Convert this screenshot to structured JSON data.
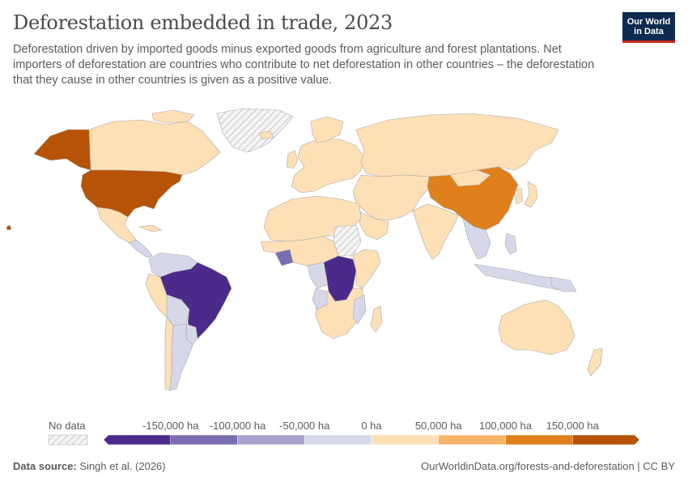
{
  "header": {
    "title": "Deforestation embedded in trade, 2023",
    "subtitle": "Deforestation driven by imported goods minus exported goods from agriculture and forest plantations. Net importers of deforestation are countries who contribute to net deforestation in other countries – the deforestation that they cause in other countries is given as a positive value."
  },
  "logo": {
    "line1": "Our World",
    "line2": "in Data"
  },
  "legend": {
    "no_data_label": "No data",
    "tick_labels": [
      "-150,000 ha",
      "-100,000 ha",
      "-50,000 ha",
      "0 ha",
      "50,000 ha",
      "100,000 ha",
      "150,000 ha"
    ],
    "bin_colors": [
      "#4b2a8a",
      "#7b6db0",
      "#aaa1ce",
      "#d6d8ea",
      "#fde0b6",
      "#f6b46b",
      "#e0801c",
      "#b75306"
    ]
  },
  "colors": {
    "no_data": "#e0e0e0",
    "border": "#b0b0b0"
  },
  "footer": {
    "source_label": "Data source:",
    "source_text": "Singh et al. (2026)",
    "url_text": "OurWorldinData.org/forests-and-deforestation | CC BY"
  }
}
